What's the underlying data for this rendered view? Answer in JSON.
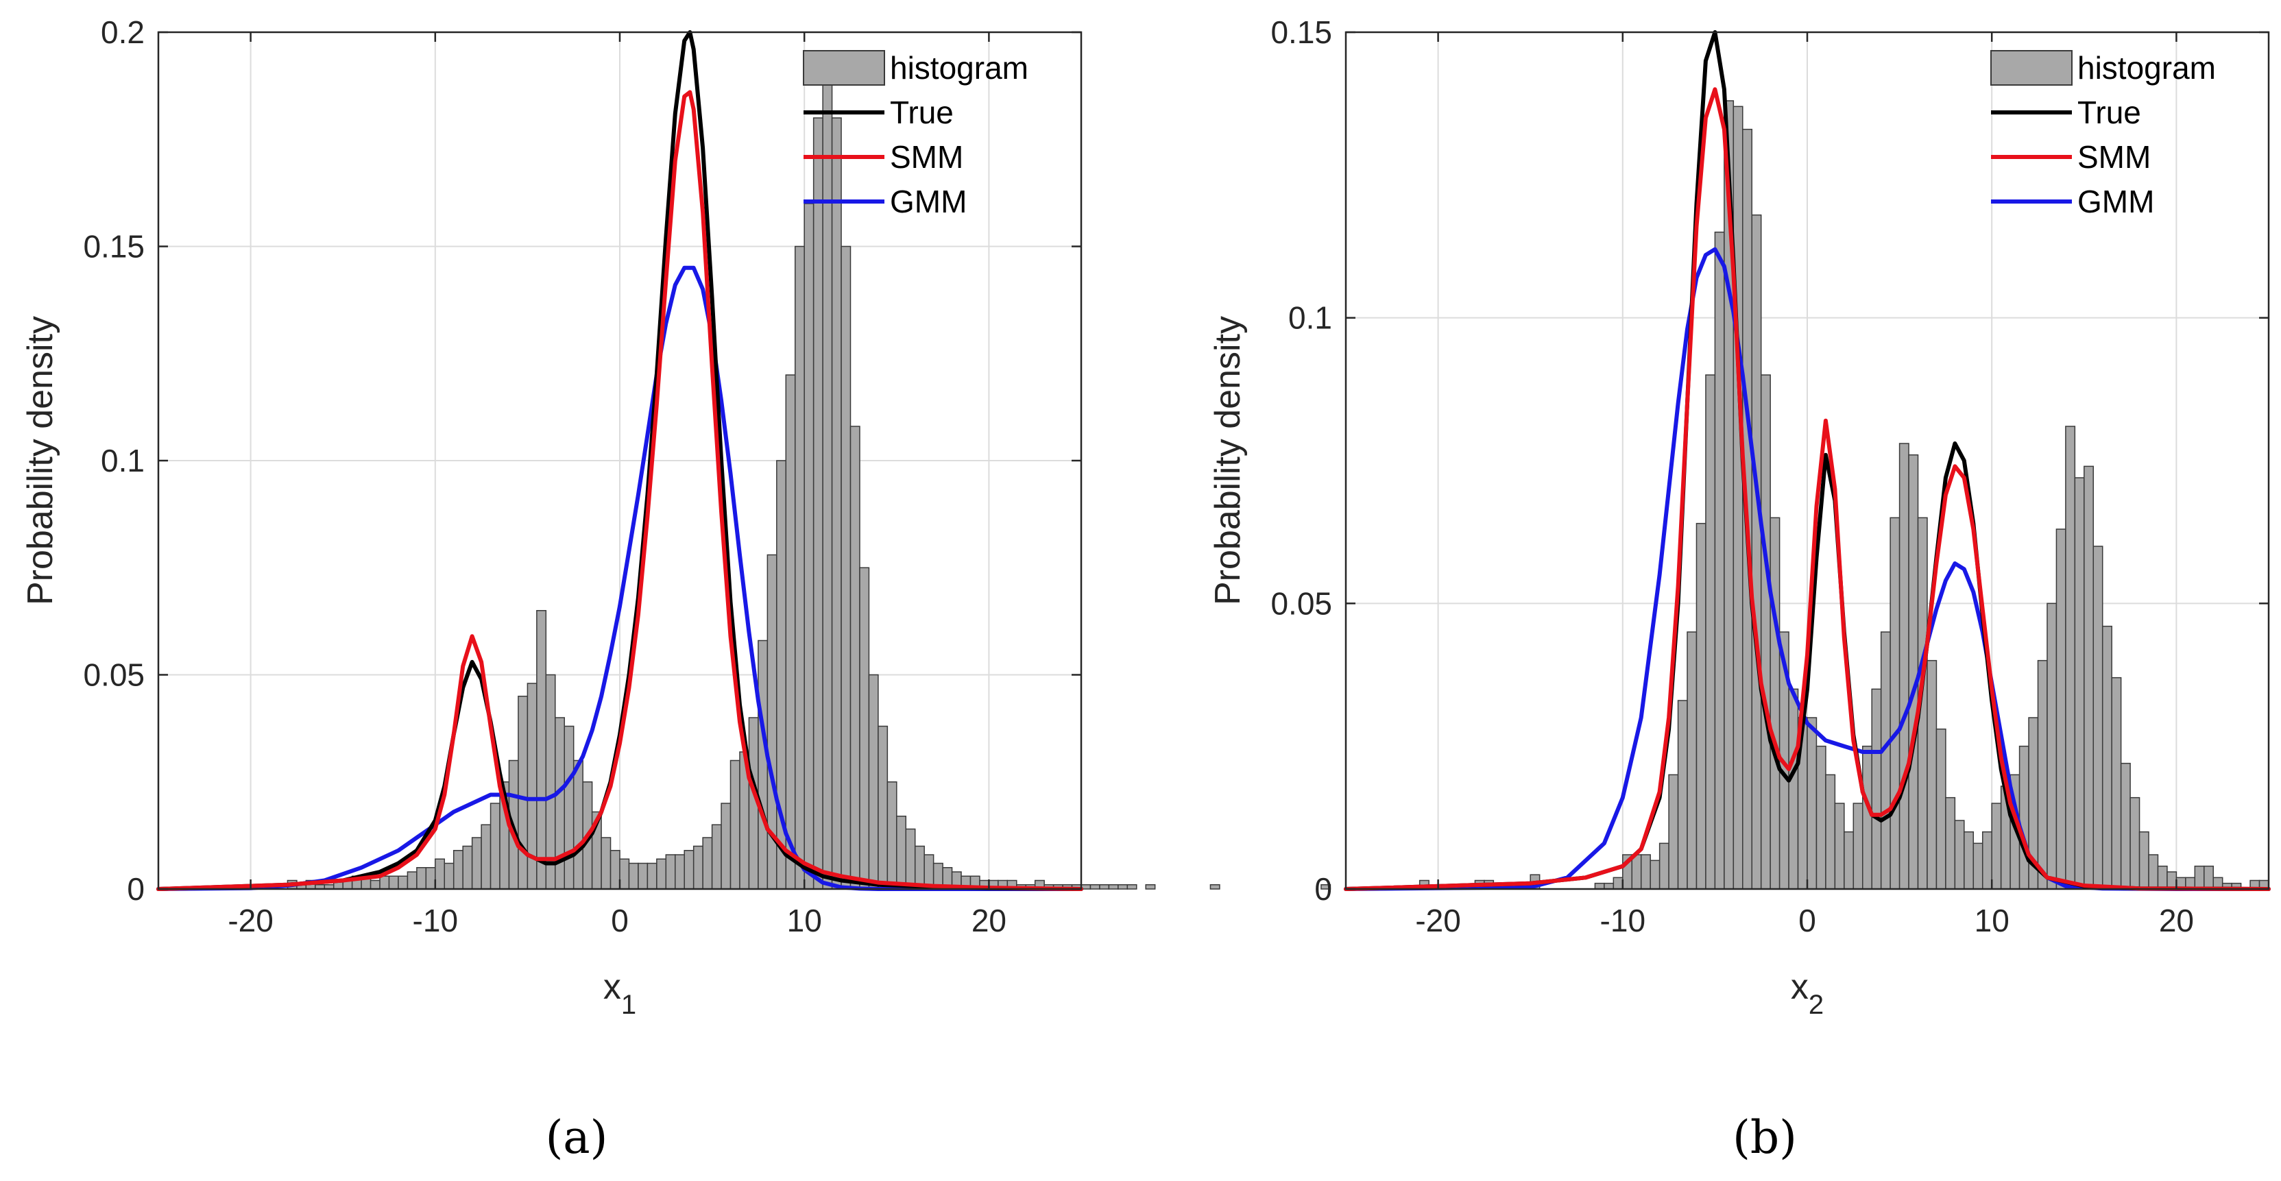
{
  "chart_data": [
    {
      "type": "bar",
      "panel_label": "(a)",
      "xlabel": "x",
      "xlabel_sub": "1",
      "ylabel": "Probability density",
      "xlim": [
        -25,
        25
      ],
      "ylim": [
        0,
        0.2
      ],
      "xticks": [
        -20,
        -10,
        0,
        10,
        20
      ],
      "xtick_labels": [
        "-20",
        "-10",
        "0",
        "10",
        "20"
      ],
      "yticks": [
        0,
        0.05,
        0.1,
        0.15,
        0.2
      ],
      "ytick_labels": [
        "0",
        "0.05",
        "0.1",
        "0.15",
        "0.2"
      ],
      "grid": true,
      "legend_position": "top-right",
      "legend": [
        "histogram",
        "True",
        "SMM",
        "GMM"
      ],
      "colors": {
        "histogram": "#a8a8a8",
        "True": "#000000",
        "SMM": "#e8101a",
        "GMM": "#1818e6"
      },
      "histogram": {
        "bin_width": 0.5,
        "bin_start": -18,
        "values": [
          0.002,
          0.001,
          0.002,
          0.001,
          0.001,
          0.002,
          0.002,
          0.003,
          0.003,
          0.002,
          0.003,
          0.003,
          0.003,
          0.004,
          0.005,
          0.005,
          0.007,
          0.006,
          0.009,
          0.01,
          0.012,
          0.015,
          0.02,
          0.025,
          0.03,
          0.045,
          0.048,
          0.065,
          0.05,
          0.04,
          0.038,
          0.03,
          0.025,
          0.018,
          0.012,
          0.009,
          0.007,
          0.006,
          0.006,
          0.006,
          0.007,
          0.008,
          0.008,
          0.009,
          0.01,
          0.012,
          0.015,
          0.02,
          0.03,
          0.032,
          0.04,
          0.058,
          0.078,
          0.1,
          0.12,
          0.15,
          0.16,
          0.18,
          0.19,
          0.18,
          0.15,
          0.108,
          0.075,
          0.05,
          0.038,
          0.025,
          0.017,
          0.014,
          0.01,
          0.008,
          0.006,
          0.005,
          0.004,
          0.003,
          0.003,
          0.002,
          0.002,
          0.002,
          0.002,
          0.001,
          0.001,
          0.002,
          0.001,
          0.001,
          0.001,
          0.001,
          0.001,
          0.001,
          0.001,
          0.001,
          0.001,
          0.001,
          0.0,
          0.001,
          0.0,
          0.0,
          0.0,
          0.0,
          0.0,
          0.0,
          0.001,
          0.0,
          0.0,
          0.0,
          0.0,
          0.0,
          0.0,
          0.0,
          0.0,
          0.0,
          0.0,
          0.0,
          0.001
        ]
      },
      "series": [
        {
          "name": "True",
          "x": [
            -25,
            -18,
            -15,
            -13,
            -12,
            -11,
            -10,
            -9.5,
            -9,
            -8.5,
            -8,
            -7.5,
            -7,
            -6.5,
            -6,
            -5.5,
            -5,
            -4.5,
            -4,
            -3.5,
            -3,
            -2.5,
            -2,
            -1.5,
            -1,
            -0.5,
            0,
            0.5,
            1,
            1.5,
            2,
            2.5,
            3,
            3.5,
            3.8,
            4,
            4.5,
            5,
            5.5,
            6,
            6.5,
            7,
            8,
            9,
            10,
            11,
            12,
            14,
            17,
            20,
            25
          ],
          "values": [
            0,
            0.001,
            0.002,
            0.004,
            0.006,
            0.009,
            0.016,
            0.024,
            0.036,
            0.047,
            0.053,
            0.049,
            0.039,
            0.027,
            0.017,
            0.011,
            0.008,
            0.007,
            0.006,
            0.006,
            0.007,
            0.008,
            0.01,
            0.013,
            0.018,
            0.025,
            0.036,
            0.05,
            0.068,
            0.092,
            0.12,
            0.152,
            0.181,
            0.198,
            0.2,
            0.196,
            0.173,
            0.138,
            0.1,
            0.067,
            0.043,
            0.028,
            0.014,
            0.008,
            0.005,
            0.003,
            0.002,
            0.001,
            0.0005,
            0.0002,
            0
          ]
        },
        {
          "name": "SMM",
          "x": [
            -25,
            -18,
            -15,
            -13,
            -12,
            -11,
            -10,
            -9.5,
            -9,
            -8.5,
            -8,
            -7.5,
            -7,
            -6.5,
            -6,
            -5.5,
            -5,
            -4.5,
            -4,
            -3.5,
            -3,
            -2.5,
            -2,
            -1.5,
            -1,
            -0.5,
            0,
            0.5,
            1,
            1.5,
            2,
            2.5,
            3,
            3.5,
            3.8,
            4,
            4.5,
            5,
            5.5,
            6,
            6.5,
            7,
            8,
            9,
            10,
            11,
            12,
            14,
            17,
            20,
            25
          ],
          "values": [
            0,
            0.001,
            0.002,
            0.003,
            0.005,
            0.008,
            0.014,
            0.022,
            0.036,
            0.052,
            0.059,
            0.053,
            0.038,
            0.024,
            0.015,
            0.01,
            0.008,
            0.007,
            0.007,
            0.007,
            0.008,
            0.009,
            0.011,
            0.014,
            0.018,
            0.024,
            0.034,
            0.047,
            0.064,
            0.087,
            0.113,
            0.142,
            0.17,
            0.185,
            0.186,
            0.182,
            0.158,
            0.122,
            0.088,
            0.059,
            0.039,
            0.026,
            0.014,
            0.009,
            0.006,
            0.004,
            0.003,
            0.0015,
            0.0007,
            0.0003,
            0
          ]
        },
        {
          "name": "GMM",
          "x": [
            -25,
            -20,
            -18,
            -16,
            -14,
            -12,
            -11,
            -10,
            -9,
            -8,
            -7,
            -6,
            -5,
            -4,
            -3.5,
            -3,
            -2.5,
            -2,
            -1.5,
            -1,
            -0.5,
            0,
            0.5,
            1,
            1.5,
            2,
            2.5,
            3,
            3.5,
            4,
            4.5,
            5,
            5.5,
            6,
            6.5,
            7,
            7.5,
            8,
            8.5,
            9,
            9.5,
            10,
            11,
            12,
            13,
            14,
            16,
            20,
            25
          ],
          "values": [
            0,
            0.0002,
            0.0008,
            0.002,
            0.005,
            0.009,
            0.012,
            0.015,
            0.018,
            0.02,
            0.022,
            0.022,
            0.021,
            0.021,
            0.022,
            0.024,
            0.027,
            0.031,
            0.037,
            0.045,
            0.055,
            0.066,
            0.079,
            0.092,
            0.106,
            0.12,
            0.132,
            0.141,
            0.145,
            0.145,
            0.14,
            0.129,
            0.114,
            0.097,
            0.078,
            0.06,
            0.044,
            0.031,
            0.021,
            0.013,
            0.008,
            0.0045,
            0.0015,
            0.0004,
            0.0001,
            0,
            0,
            0,
            0
          ]
        }
      ]
    },
    {
      "type": "bar",
      "panel_label": "(b)",
      "xlabel": "x",
      "xlabel_sub": "2",
      "ylabel": "Probability density",
      "xlim": [
        -25,
        25
      ],
      "ylim": [
        0,
        0.15
      ],
      "xticks": [
        -20,
        -10,
        0,
        10,
        20
      ],
      "xtick_labels": [
        "-20",
        "-10",
        "0",
        "10",
        "20"
      ],
      "yticks": [
        0,
        0.05,
        0.1,
        0.15
      ],
      "ytick_labels": [
        "0",
        "0.05",
        "0.1",
        "0.15"
      ],
      "grid": true,
      "legend_position": "top-right",
      "legend": [
        "histogram",
        "True",
        "SMM",
        "GMM"
      ],
      "colors": {
        "histogram": "#a8a8a8",
        "True": "#000000",
        "SMM": "#e8101a",
        "GMM": "#1818e6"
      },
      "histogram": {
        "bin_width": 0.5,
        "bin_start": -21.5,
        "values": [
          0.0,
          0.0015,
          0.0,
          0.0,
          0.0,
          0.0,
          0.0,
          0.0015,
          0.0015,
          0.0,
          0.0,
          0.0,
          0.0,
          0.0025,
          0.0,
          0.0,
          0.0,
          0.0,
          0.0,
          0.0,
          0.001,
          0.001,
          0.002,
          0.006,
          0.006,
          0.006,
          0.005,
          0.008,
          0.02,
          0.033,
          0.045,
          0.064,
          0.09,
          0.115,
          0.138,
          0.137,
          0.133,
          0.118,
          0.09,
          0.065,
          0.045,
          0.035,
          0.03,
          0.03,
          0.025,
          0.02,
          0.015,
          0.01,
          0.015,
          0.025,
          0.035,
          0.045,
          0.065,
          0.078,
          0.076,
          0.065,
          0.04,
          0.028,
          0.016,
          0.012,
          0.01,
          0.008,
          0.01,
          0.015,
          0.018,
          0.02,
          0.025,
          0.03,
          0.04,
          0.05,
          0.063,
          0.081,
          0.072,
          0.074,
          0.06,
          0.046,
          0.037,
          0.022,
          0.016,
          0.01,
          0.006,
          0.004,
          0.003,
          0.002,
          0.002,
          0.004,
          0.004,
          0.002,
          0.001,
          0.001,
          0.0,
          0.0015,
          0.0015,
          0.0,
          0.0,
          0.0,
          0.0,
          0.0,
          0.0,
          0.0
        ]
      },
      "series": [
        {
          "name": "True",
          "x": [
            -25,
            -15,
            -12,
            -10,
            -9,
            -8,
            -7.5,
            -7,
            -6.5,
            -6,
            -5.5,
            -5,
            -4.5,
            -4,
            -3.5,
            -3,
            -2.5,
            -2,
            -1.5,
            -1,
            -0.5,
            0,
            0.5,
            1,
            1.5,
            2,
            2.5,
            3,
            3.5,
            4,
            4.5,
            5,
            5.5,
            6,
            6.5,
            7,
            7.5,
            8,
            8.5,
            9,
            9.5,
            10,
            10.5,
            11,
            12,
            13,
            15,
            18,
            25
          ],
          "values": [
            0,
            0.001,
            0.002,
            0.004,
            0.007,
            0.016,
            0.028,
            0.05,
            0.085,
            0.12,
            0.145,
            0.15,
            0.14,
            0.11,
            0.075,
            0.05,
            0.035,
            0.026,
            0.021,
            0.019,
            0.022,
            0.035,
            0.058,
            0.076,
            0.068,
            0.045,
            0.027,
            0.017,
            0.013,
            0.012,
            0.013,
            0.016,
            0.021,
            0.03,
            0.043,
            0.058,
            0.072,
            0.078,
            0.075,
            0.064,
            0.048,
            0.033,
            0.021,
            0.013,
            0.005,
            0.002,
            0.0005,
            0.0001,
            0
          ]
        },
        {
          "name": "SMM",
          "x": [
            -25,
            -15,
            -12,
            -10,
            -9,
            -8,
            -7.5,
            -7,
            -6.5,
            -6,
            -5.5,
            -5,
            -4.5,
            -4,
            -3.5,
            -3,
            -2.5,
            -2,
            -1.5,
            -1,
            -0.5,
            0,
            0.5,
            1,
            1.5,
            2,
            2.5,
            3,
            3.5,
            4,
            4.5,
            5,
            5.5,
            6,
            6.5,
            7,
            7.5,
            8,
            8.5,
            9,
            9.5,
            10,
            10.5,
            11,
            12,
            13,
            15,
            18,
            25
          ],
          "values": [
            0,
            0.001,
            0.002,
            0.004,
            0.007,
            0.017,
            0.03,
            0.053,
            0.085,
            0.116,
            0.135,
            0.14,
            0.133,
            0.108,
            0.076,
            0.051,
            0.036,
            0.028,
            0.023,
            0.021,
            0.025,
            0.041,
            0.067,
            0.082,
            0.07,
            0.044,
            0.026,
            0.017,
            0.013,
            0.013,
            0.014,
            0.017,
            0.022,
            0.031,
            0.043,
            0.057,
            0.069,
            0.074,
            0.072,
            0.063,
            0.049,
            0.035,
            0.023,
            0.015,
            0.006,
            0.002,
            0.0006,
            0.0001,
            0
          ]
        },
        {
          "name": "GMM",
          "x": [
            -25,
            -15,
            -13,
            -11,
            -10,
            -9,
            -8,
            -7.5,
            -7,
            -6.5,
            -6,
            -5.5,
            -5,
            -4.5,
            -4,
            -3.5,
            -3,
            -2.5,
            -2,
            -1.5,
            -1,
            0,
            1,
            2,
            3,
            4,
            5,
            5.5,
            6,
            6.5,
            7,
            7.5,
            8,
            8.5,
            9,
            9.5,
            10,
            10.5,
            11,
            11.5,
            12,
            13,
            14,
            16,
            20,
            25
          ],
          "values": [
            0,
            0.0003,
            0.002,
            0.008,
            0.016,
            0.03,
            0.055,
            0.07,
            0.085,
            0.098,
            0.107,
            0.111,
            0.112,
            0.109,
            0.101,
            0.09,
            0.077,
            0.064,
            0.052,
            0.043,
            0.036,
            0.029,
            0.026,
            0.025,
            0.024,
            0.024,
            0.028,
            0.032,
            0.037,
            0.043,
            0.049,
            0.054,
            0.057,
            0.056,
            0.052,
            0.045,
            0.036,
            0.027,
            0.018,
            0.011,
            0.006,
            0.002,
            0.0005,
            0.0001,
            0,
            0
          ]
        }
      ]
    }
  ]
}
